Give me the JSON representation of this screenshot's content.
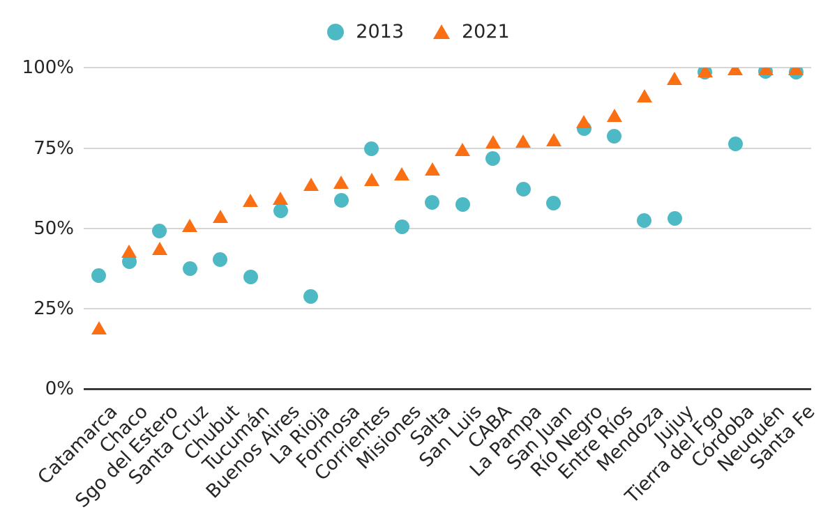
{
  "chart_data": {
    "type": "scatter",
    "title": "",
    "xlabel": "",
    "ylabel": "",
    "ylim": [
      0,
      100
    ],
    "yticks": [
      "0%",
      "25%",
      "50%",
      "75%",
      "100%"
    ],
    "grid": true,
    "legend_position": "top-center",
    "categories": [
      "Catamarca",
      "Chaco",
      "Sgo del Estero",
      "Santa Cruz",
      "Chubut",
      "Tucumán",
      "Buenos Aires",
      "La Rioja",
      "Formosa",
      "Corrientes",
      "Misiones",
      "Salta",
      "San Luis",
      "CABA",
      "La Pampa",
      "San Juan",
      "Río Negro",
      "Entre Ríos",
      "Mendoza",
      "Jujuy",
      "Tierra del Fgo",
      "Córdoba",
      "Neuquén",
      "Santa Fe"
    ],
    "series": [
      {
        "name": "2013",
        "marker": "circle",
        "color": "#4DB9C4",
        "values": [
          35.3,
          39.6,
          49.3,
          37.4,
          40.2,
          34.8,
          55.4,
          28.7,
          58.8,
          74.8,
          50.6,
          58.1,
          57.4,
          71.8,
          62.3,
          57.8,
          81.0,
          78.7,
          52.4,
          53.0,
          98.6,
          76.3,
          99.0,
          98.7
        ]
      },
      {
        "name": "2021",
        "marker": "triangle",
        "color": "#FA6E14",
        "values": [
          19.0,
          43.0,
          43.7,
          51.0,
          53.7,
          58.7,
          59.4,
          63.8,
          64.3,
          65.2,
          67.0,
          68.6,
          74.6,
          76.9,
          77.3,
          77.6,
          83.3,
          85.3,
          91.3,
          96.8,
          99.2,
          99.8,
          99.8,
          99.8
        ]
      }
    ],
    "colors": {
      "grid": "#D6D6D6",
      "axis": "#3A3A3A",
      "text": "#262626"
    }
  }
}
